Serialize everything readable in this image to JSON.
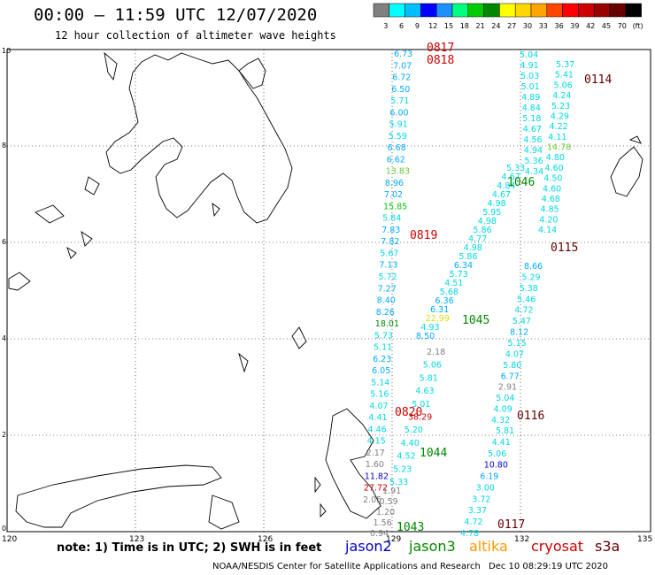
{
  "header": {
    "title": "00:00 – 11:59 UTC 12/07/2020",
    "subtitle": "12 hour collection of altimeter wave heights"
  },
  "colorbar": {
    "ticks": [
      "3",
      "6",
      "9",
      "12",
      "15",
      "18",
      "21",
      "24",
      "27",
      "30",
      "33",
      "36",
      "39",
      "42",
      "45",
      "70",
      "(ft)"
    ],
    "colors": [
      "#808080",
      "#00ffff",
      "#00bfff",
      "#0000ff",
      "#1e90ff",
      "#00ff80",
      "#00cc00",
      "#008800",
      "#ffff00",
      "#ffd700",
      "#ffa500",
      "#ff4500",
      "#ff0000",
      "#cc0000",
      "#990000",
      "#660000",
      "#000000"
    ]
  },
  "axes": {
    "lon_ticks": [
      "120",
      "123",
      "126",
      "129",
      "132",
      "135"
    ],
    "lat_ticks": [
      "0",
      "2",
      "4",
      "6",
      "8",
      "10"
    ]
  },
  "tracks": [
    {
      "id": "0817",
      "color": "#cc0000",
      "values": [
        "6.73",
        "7.07",
        "6.72",
        "6.50",
        "5.71",
        "6.00",
        "5.91",
        "5.59",
        "6.68",
        "6.62",
        "13.83",
        "8.96",
        "7.02",
        "15.85",
        "5.84",
        "7.83",
        "7.82",
        "5.67",
        "7.13",
        "5.72",
        "7.27",
        "8.40",
        "8.26",
        "18.01",
        "5.73",
        "5.11",
        "6.23",
        "6.05",
        "5.14",
        "5.16",
        "4.07",
        "4.41",
        "4.46",
        "4.15",
        "2.17",
        "1.60",
        "11.82",
        "27.72",
        "2.05"
      ]
    },
    {
      "id": "0818",
      "color": "#cc0000",
      "values": []
    },
    {
      "id": "0819",
      "color": "#cc0000",
      "values": []
    },
    {
      "id": "0820",
      "color": "#cc0000",
      "values": [
        "2.18",
        "5.06",
        "5.81",
        "4.63",
        "5.01",
        "38.29",
        "5.20",
        "4.40",
        "4.52",
        "5.23",
        "5.33"
      ]
    },
    {
      "id": "1045",
      "color": "#008800",
      "values": [
        "5.33",
        "4.67",
        "4.84",
        "4.67",
        "4.98",
        "5.95",
        "4.98",
        "5.86",
        "4.77",
        "4.98",
        "5.86",
        "6.34",
        "5.73",
        "4.51",
        "5.68",
        "6.36",
        "6.31",
        "22.99",
        "4.93",
        "8.50"
      ]
    },
    {
      "id": "1046",
      "color": "#008800",
      "values": []
    },
    {
      "id": "1044",
      "color": "#008800",
      "values": []
    },
    {
      "id": "1043",
      "color": "#008800",
      "values": [
        "1.91",
        "0.59",
        "1.20",
        "1.56",
        "0.94"
      ]
    },
    {
      "id": "0114",
      "color": "#660000",
      "values": [
        "5.04",
        "4.91",
        "5.03",
        "5.01",
        "4.89",
        "4.84",
        "5.18",
        "4.67",
        "4.56",
        "4.94",
        "5.36",
        "4.34",
        "5.37",
        "5.41",
        "5.06",
        "4.24",
        "5.23",
        "4.29",
        "4.22",
        "4.11",
        "14.78",
        "4.80",
        "4.60",
        "4.50",
        "4.60",
        "4.68",
        "4.85",
        "4.20",
        "4.14"
      ]
    },
    {
      "id": "0115",
      "color": "#660000",
      "values": [
        "8.66",
        "5.29",
        "5.38",
        "5.46",
        "4.72",
        "5.47",
        "8.12",
        "5.15",
        "4.07",
        "5.80",
        "6.77",
        "2.91",
        "5.04",
        "4.09",
        "4.32"
      ]
    },
    {
      "id": "0116",
      "color": "#660000",
      "values": [
        "5.81",
        "4.41",
        "5.06",
        "10.80",
        "6.19",
        "3.00",
        "3.72",
        "3.37",
        "4.72",
        "4.78"
      ]
    },
    {
      "id": "0117",
      "color": "#660000",
      "values": []
    }
  ],
  "note": "note: 1) Time is in UTC; 2) SWH is in feet",
  "legend": [
    {
      "name": "jason2",
      "color": "#0000cc"
    },
    {
      "name": "jason3",
      "color": "#008800"
    },
    {
      "name": "altika",
      "color": "#ff9900"
    },
    {
      "name": "cryosat",
      "color": "#cc0000"
    },
    {
      "name": "s3a",
      "color": "#660000"
    }
  ],
  "footer": {
    "credit": "NOAA/NESDIS Center for Satellite Applications and Research",
    "timestamp": "Dec 10 08:29:19 UTC 2020"
  }
}
